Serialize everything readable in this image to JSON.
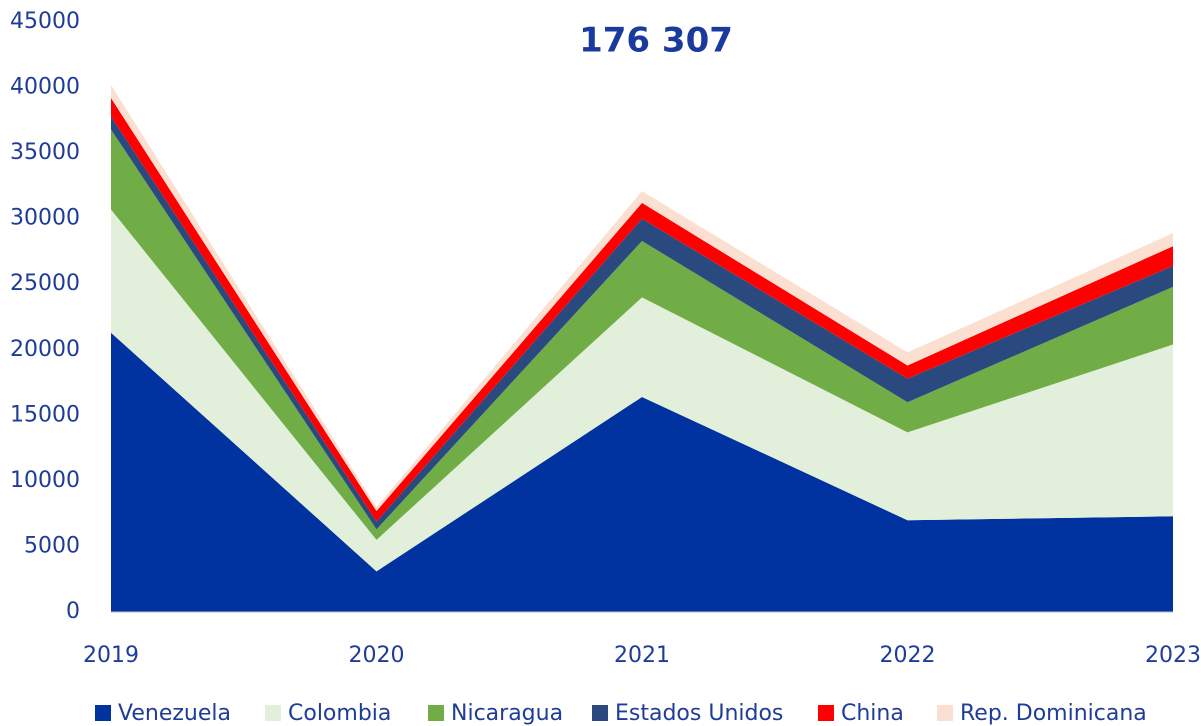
{
  "chart_data": {
    "type": "stacked_area",
    "title": "176 307",
    "x": [
      2019,
      2020,
      2021,
      2022,
      2023
    ],
    "xlim": [
      2019,
      2023
    ],
    "xticks": [
      2019,
      2020,
      2021,
      2022,
      2023
    ],
    "ylim": [
      0,
      45000
    ],
    "yticks": [
      0,
      5000,
      10000,
      15000,
      20000,
      25000,
      30000,
      35000,
      40000,
      45000
    ],
    "grid": false,
    "legend": "bottom",
    "series": [
      {
        "name": "Venezuela",
        "color": "#0033a0",
        "values": [
          21300,
          3100,
          16400,
          7000,
          7300
        ]
      },
      {
        "name": "Colombia",
        "color": "#e2efda",
        "values": [
          9400,
          2400,
          7600,
          6700,
          13100
        ]
      },
      {
        "name": "Nicaragua",
        "color": "#70ad47",
        "values": [
          6100,
          800,
          4300,
          2300,
          4400
        ]
      },
      {
        "name": "Estados Unidos",
        "color": "#2a4a7f",
        "values": [
          1000,
          600,
          1700,
          1800,
          1600
        ]
      },
      {
        "name": "China",
        "color": "#ff0000",
        "values": [
          1400,
          800,
          1200,
          1000,
          1500
        ]
      },
      {
        "name": "Rep. Dominicana",
        "color": "#fbe0d2",
        "values": [
          1000,
          300,
          900,
          1000,
          1000
        ]
      }
    ]
  }
}
